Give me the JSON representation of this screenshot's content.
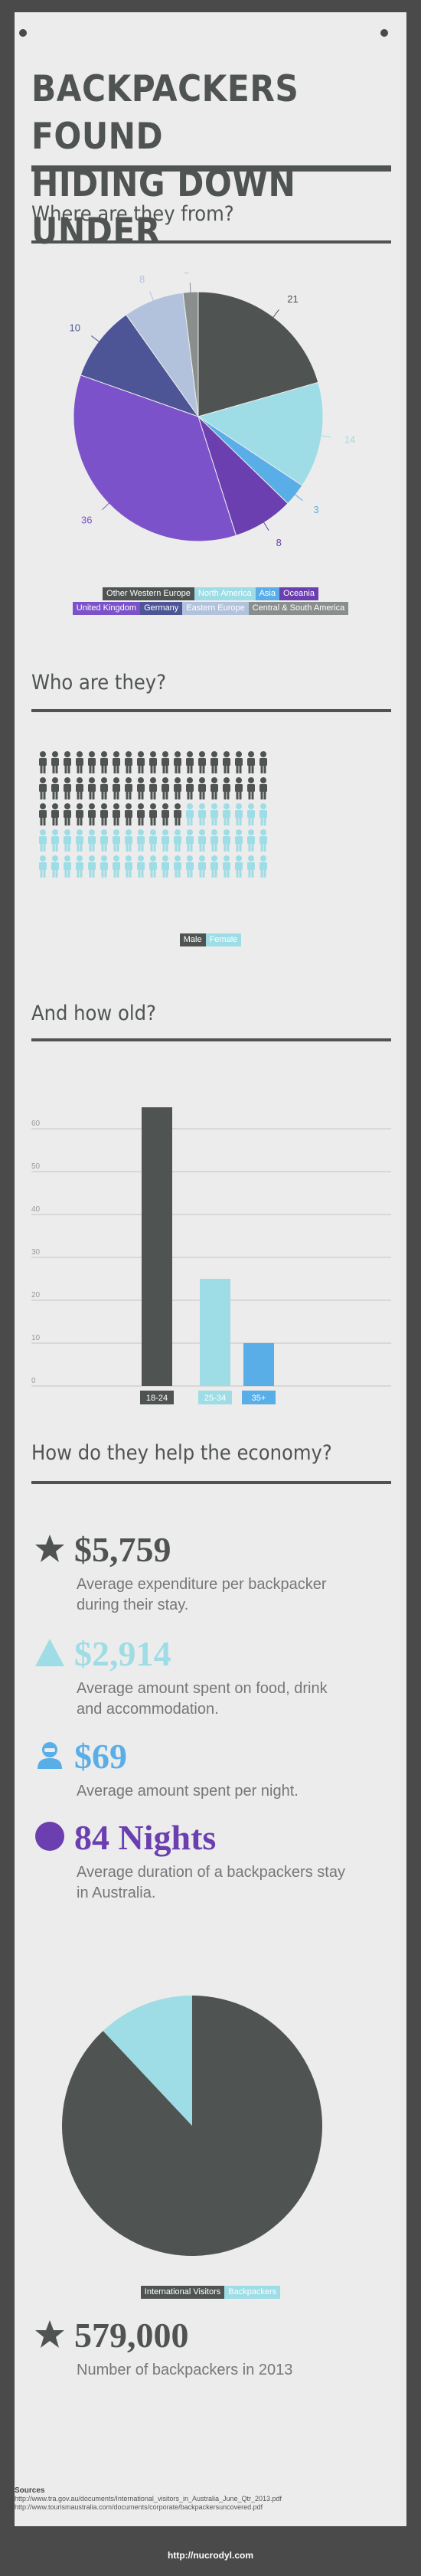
{
  "title_line1": "BACKPACKERS FOUND",
  "title_line2": "HIDING DOWN UNDER",
  "colors": {
    "dark": "#4f5452",
    "light_cyan": "#9edde5",
    "blue": "#5aaee8",
    "purple": "#6b3fb0",
    "violet": "#7b52c9",
    "navy": "#4d5596",
    "pale_lavender": "#b3c2dc",
    "grey": "#8a8f8e"
  },
  "sections": {
    "origin": "Where are they from?",
    "who": "Who are they?",
    "age": "And how old?",
    "economy": "How do they help the economy?"
  },
  "chart_data": [
    {
      "type": "pie",
      "series_labels": [
        "Other Western Europe",
        "North America",
        "Asia",
        "Oceania",
        "United Kingdom",
        "Germany",
        "Eastern Europe",
        "Central & South America"
      ],
      "values": [
        21,
        14,
        3,
        8,
        36,
        10,
        8,
        2
      ],
      "label_text": [
        "21",
        "14",
        "3",
        "8",
        "36",
        "10",
        "8",
        "2"
      ],
      "colors": [
        "#4f5452",
        "#9edde5",
        "#5aaee8",
        "#6b3fb0",
        "#7b52c9",
        "#4d5596",
        "#b3c2dc",
        "#8a8f8e"
      ],
      "legend_rows": [
        [
          0,
          1,
          2,
          3
        ],
        [
          4,
          5,
          6,
          7
        ]
      ]
    },
    {
      "type": "pictogram",
      "categories": [
        "Male",
        "Female"
      ],
      "values": [
        50,
        45
      ],
      "colors": [
        "#4f5452",
        "#9edde5"
      ]
    },
    {
      "type": "bar",
      "categories": [
        "18-24",
        "25-34",
        "35+"
      ],
      "values": [
        65,
        25,
        10
      ],
      "colors": [
        "#4f5452",
        "#9edde5",
        "#5aaee8"
      ],
      "ylim": [
        0,
        60
      ],
      "yticks": [
        "0",
        "10",
        "20",
        "30",
        "40",
        "50",
        "60"
      ],
      "grid": true
    },
    {
      "type": "pie",
      "series_labels": [
        "International Visitors",
        "Backpackers"
      ],
      "values": [
        88,
        12
      ],
      "colors": [
        "#4f5452",
        "#9edde5"
      ]
    }
  ],
  "stats": [
    {
      "icon": "star-icon",
      "value": "$5,759",
      "desc": "Average expenditure per backpacker during their stay.",
      "color": "#4f5452"
    },
    {
      "icon": "triangle-icon",
      "value": "$2,914",
      "desc": "Average amount spent on food, drink and accommodation.",
      "color": "#9edde5"
    },
    {
      "icon": "person-icon",
      "value": "$69",
      "desc": "Average amount spent per night.",
      "color": "#5aaee8"
    },
    {
      "icon": "circle-icon",
      "value": "84 Nights",
      "desc": "Average duration of a backpackers stay in Australia.",
      "color": "#6b3fb0"
    }
  ],
  "final_stat": {
    "icon": "star-icon",
    "value": "579,000",
    "desc": "Number of backpackers in 2013",
    "color": "#4f5452"
  },
  "sources": {
    "heading": "Sources",
    "line1": "http://www.tra.gov.au/documents/International_visitors_in_Australia_June_Qtr_2013.pdf",
    "line2": "http://www.tourismaustralia.com/documents/corporate/backpackersuncovered.pdf"
  },
  "footer_url": "http://nucrodyl.com"
}
